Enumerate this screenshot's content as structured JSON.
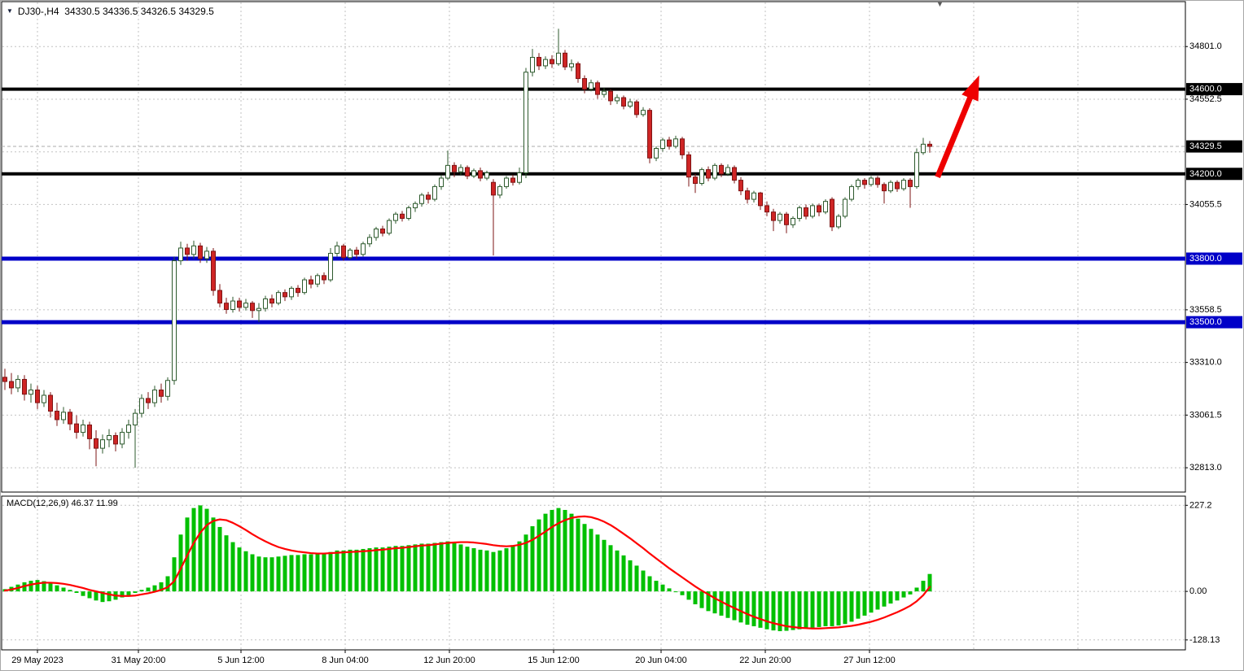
{
  "header": {
    "dropdown_icon": "▼",
    "symbol_line": "DJ30-,H4  34330.5 34336.5 34326.5 34329.5",
    "scroll_icon": "▼"
  },
  "colors": {
    "bg": "#ffffff",
    "frame": "#000000",
    "grid": "#c2c2c2",
    "axis_text": "#000000",
    "up_fill": "#ffffff",
    "up_border": "#2d5a2d",
    "down_fill": "#cf2525",
    "down_border": "#7e1414",
    "price_line": "#ababab",
    "badge_text": "#ffffff",
    "badge_black": "#000000",
    "badge_blue": "#0000c8",
    "macd_bar": "#00c000",
    "macd_signal": "#ff0000"
  },
  "chart_data": {
    "type": "candlestick_with_macd",
    "symbol": "DJ30-",
    "timeframe": "H4",
    "quote": {
      "open": "34330.5",
      "high": "34336.5",
      "low": "34326.5",
      "close": "34329.5"
    },
    "main": {
      "ylim": [
        32702,
        34990
      ],
      "yticks": [
        34801.0,
        34552.5,
        34304.0,
        34055.5,
        33807.0,
        33558.5,
        33310.0,
        33061.5,
        32813.0
      ],
      "ytick_labels": [
        "34801.0",
        "34552.5",
        "",
        "34055.5",
        "",
        "33558.5",
        "33310.0",
        "33061.5",
        "32813.0"
      ],
      "hlines": [
        {
          "price": 34600.0,
          "label": "34600.0",
          "color": "#000000",
          "badge": "#000000",
          "width": 4
        },
        {
          "price": 34200.0,
          "label": "34200.0",
          "color": "#000000",
          "badge": "#000000",
          "width": 4
        },
        {
          "price": 33800.0,
          "label": "33800.0",
          "color": "#0000c8",
          "badge": "#0000c8",
          "width": 5
        },
        {
          "price": 33500.0,
          "label": "33500.0",
          "color": "#0000c8",
          "badge": "#0000c8",
          "width": 5
        }
      ],
      "current_price": {
        "value": 34329.5,
        "label": "34329.5"
      }
    },
    "ohlc": [
      [
        33240,
        33280,
        33180,
        33220
      ],
      [
        33220,
        33260,
        33160,
        33190
      ],
      [
        33190,
        33250,
        33170,
        33230
      ],
      [
        33230,
        33250,
        33130,
        33160
      ],
      [
        33160,
        33210,
        33120,
        33180
      ],
      [
        33180,
        33200,
        33090,
        33120
      ],
      [
        33120,
        33180,
        33100,
        33155
      ],
      [
        33155,
        33170,
        33050,
        33080
      ],
      [
        33080,
        33120,
        33010,
        33040
      ],
      [
        33040,
        33100,
        33020,
        33075
      ],
      [
        33075,
        33090,
        32990,
        33020
      ],
      [
        33020,
        33060,
        32950,
        32980
      ],
      [
        32980,
        33040,
        32960,
        33015
      ],
      [
        33015,
        33030,
        32900,
        32950
      ],
      [
        32950,
        32990,
        32820,
        32905
      ],
      [
        32905,
        32970,
        32880,
        32945
      ],
      [
        32945,
        32995,
        32910,
        32965
      ],
      [
        32965,
        32980,
        32890,
        32925
      ],
      [
        32925,
        33000,
        32905,
        32980
      ],
      [
        32980,
        33040,
        32950,
        33015
      ],
      [
        33015,
        33090,
        32813,
        33070
      ],
      [
        33070,
        33160,
        33050,
        33140
      ],
      [
        33140,
        33170,
        33090,
        33120
      ],
      [
        33120,
        33200,
        33100,
        33180
      ],
      [
        33180,
        33210,
        33120,
        33150
      ],
      [
        33150,
        33240,
        33130,
        33225
      ],
      [
        33225,
        33810,
        33205,
        33790
      ],
      [
        33790,
        33880,
        33770,
        33850
      ],
      [
        33850,
        33870,
        33790,
        33820
      ],
      [
        33820,
        33885,
        33800,
        33860
      ],
      [
        33860,
        33875,
        33780,
        33800
      ],
      [
        33800,
        33855,
        33780,
        33835
      ],
      [
        33835,
        33850,
        33625,
        33650
      ],
      [
        33650,
        33680,
        33570,
        33590
      ],
      [
        33590,
        33615,
        33540,
        33560
      ],
      [
        33560,
        33620,
        33545,
        33600
      ],
      [
        33600,
        33615,
        33550,
        33570
      ],
      [
        33570,
        33610,
        33555,
        33590
      ],
      [
        33590,
        33600,
        33520,
        33555
      ],
      [
        33555,
        33590,
        33500,
        33565
      ],
      [
        33565,
        33625,
        33550,
        33610
      ],
      [
        33610,
        33630,
        33570,
        33590
      ],
      [
        33590,
        33650,
        33580,
        33640
      ],
      [
        33640,
        33655,
        33600,
        33620
      ],
      [
        33620,
        33670,
        33605,
        33660
      ],
      [
        33660,
        33675,
        33620,
        33640
      ],
      [
        33640,
        33710,
        33630,
        33700
      ],
      [
        33700,
        33720,
        33660,
        33680
      ],
      [
        33680,
        33730,
        33665,
        33720
      ],
      [
        33720,
        33735,
        33680,
        33700
      ],
      [
        33700,
        33850,
        33690,
        33825
      ],
      [
        33825,
        33880,
        33810,
        33860
      ],
      [
        33860,
        33870,
        33790,
        33805
      ],
      [
        33805,
        33850,
        33795,
        33840
      ],
      [
        33840,
        33855,
        33800,
        33820
      ],
      [
        33820,
        33880,
        33810,
        33870
      ],
      [
        33870,
        33915,
        33855,
        33900
      ],
      [
        33900,
        33950,
        33885,
        33940
      ],
      [
        33940,
        33955,
        33905,
        33920
      ],
      [
        33920,
        33990,
        33910,
        33980
      ],
      [
        33980,
        34020,
        33965,
        34010
      ],
      [
        34010,
        34025,
        33975,
        33990
      ],
      [
        33990,
        34050,
        33980,
        34040
      ],
      [
        34040,
        34070,
        34020,
        34060
      ],
      [
        34060,
        34110,
        34045,
        34100
      ],
      [
        34100,
        34115,
        34060,
        34080
      ],
      [
        34080,
        34150,
        34070,
        34140
      ],
      [
        34140,
        34195,
        34125,
        34180
      ],
      [
        34180,
        34310,
        34170,
        34240
      ],
      [
        34240,
        34255,
        34185,
        34210
      ],
      [
        34210,
        34245,
        34195,
        34230
      ],
      [
        34230,
        34240,
        34175,
        34190
      ],
      [
        34190,
        34225,
        34180,
        34215
      ],
      [
        34215,
        34230,
        34165,
        34180
      ],
      [
        34180,
        34215,
        34170,
        34205
      ],
      [
        34160,
        34175,
        33815,
        34100
      ],
      [
        34100,
        34150,
        34085,
        34140
      ],
      [
        34140,
        34190,
        34130,
        34180
      ],
      [
        34180,
        34195,
        34145,
        34160
      ],
      [
        34160,
        34230,
        34150,
        34205
      ],
      [
        34205,
        34700,
        34180,
        34680
      ],
      [
        34680,
        34790,
        34660,
        34750
      ],
      [
        34750,
        34770,
        34690,
        34710
      ],
      [
        34710,
        34755,
        34695,
        34740
      ],
      [
        34740,
        34760,
        34700,
        34720
      ],
      [
        34720,
        34885,
        34710,
        34770
      ],
      [
        34770,
        34785,
        34690,
        34705
      ],
      [
        34705,
        34740,
        34685,
        34720
      ],
      [
        34720,
        34730,
        34630,
        34650
      ],
      [
        34650,
        34665,
        34580,
        34600
      ],
      [
        34600,
        34645,
        34590,
        34630
      ],
      [
        34630,
        34640,
        34555,
        34575
      ],
      [
        34575,
        34605,
        34560,
        34590
      ],
      [
        34590,
        34600,
        34525,
        34545
      ],
      [
        34545,
        34575,
        34530,
        34560
      ],
      [
        34560,
        34570,
        34505,
        34520
      ],
      [
        34520,
        34555,
        34510,
        34540
      ],
      [
        34540,
        34550,
        34465,
        34480
      ],
      [
        34480,
        34515,
        34470,
        34500
      ],
      [
        34500,
        34510,
        34250,
        34275
      ],
      [
        34275,
        34330,
        34260,
        34320
      ],
      [
        34320,
        34370,
        34305,
        34360
      ],
      [
        34360,
        34375,
        34315,
        34330
      ],
      [
        34330,
        34380,
        34320,
        34365
      ],
      [
        34365,
        34375,
        34270,
        34290
      ],
      [
        34290,
        34305,
        34140,
        34185
      ],
      [
        34185,
        34200,
        34110,
        34155
      ],
      [
        34155,
        34230,
        34145,
        34220
      ],
      [
        34220,
        34235,
        34165,
        34180
      ],
      [
        34180,
        34250,
        34170,
        34240
      ],
      [
        34240,
        34250,
        34185,
        34200
      ],
      [
        34200,
        34245,
        34190,
        34230
      ],
      [
        34230,
        34240,
        34155,
        34170
      ],
      [
        34170,
        34185,
        34100,
        34120
      ],
      [
        34120,
        34135,
        34060,
        34080
      ],
      [
        34080,
        34120,
        34065,
        34110
      ],
      [
        34110,
        34115,
        34030,
        34050
      ],
      [
        34050,
        34070,
        34000,
        34020
      ],
      [
        34020,
        34035,
        33930,
        33980
      ],
      [
        33980,
        34020,
        33965,
        34010
      ],
      [
        34010,
        34020,
        33920,
        33960
      ],
      [
        33960,
        34000,
        33945,
        33990
      ],
      [
        33990,
        34050,
        33975,
        34040
      ],
      [
        34040,
        34055,
        33985,
        34000
      ],
      [
        34000,
        34060,
        33990,
        34050
      ],
      [
        34050,
        34060,
        34000,
        34020
      ],
      [
        34020,
        34080,
        34010,
        34070
      ],
      [
        34080,
        34090,
        33930,
        33950
      ],
      [
        33950,
        34010,
        33940,
        34000
      ],
      [
        34000,
        34090,
        33990,
        34080
      ],
      [
        34080,
        34150,
        34070,
        34140
      ],
      [
        34140,
        34180,
        34125,
        34170
      ],
      [
        34170,
        34180,
        34130,
        34150
      ],
      [
        34150,
        34190,
        34140,
        34180
      ],
      [
        34180,
        34190,
        34135,
        34150
      ],
      [
        34150,
        34160,
        34060,
        34120
      ],
      [
        34120,
        34170,
        34110,
        34160
      ],
      [
        34160,
        34170,
        34115,
        34130
      ],
      [
        34130,
        34180,
        34120,
        34170
      ],
      [
        34170,
        34180,
        34040,
        34140
      ],
      [
        34140,
        34320,
        34130,
        34300
      ],
      [
        34300,
        34370,
        34290,
        34340
      ],
      [
        34340,
        34355,
        34300,
        34330
      ]
    ],
    "macd": {
      "label": "MACD(12,26,9) 46.37 11.99",
      "ylim": [
        -150,
        245
      ],
      "yticks": [
        {
          "v": 227.2,
          "label": "227.2"
        },
        {
          "v": 0.0,
          "label": "0.00"
        },
        {
          "v": -128.13,
          "label": "-128.13"
        }
      ],
      "histogram": [
        6,
        12,
        18,
        24,
        28,
        30,
        27,
        22,
        16,
        10,
        4,
        -4,
        -12,
        -18,
        -24,
        -28,
        -26,
        -22,
        -16,
        -10,
        -4,
        4,
        10,
        16,
        24,
        40,
        90,
        150,
        195,
        220,
        227,
        218,
        195,
        170,
        148,
        130,
        116,
        106,
        98,
        92,
        90,
        90,
        92,
        94,
        96,
        96,
        98,
        98,
        100,
        100,
        104,
        108,
        108,
        110,
        110,
        112,
        114,
        116,
        116,
        118,
        120,
        120,
        122,
        124,
        126,
        126,
        128,
        130,
        132,
        128,
        124,
        118,
        114,
        110,
        108,
        104,
        108,
        114,
        122,
        132,
        150,
        172,
        190,
        205,
        215,
        220,
        215,
        205,
        192,
        178,
        165,
        150,
        136,
        122,
        108,
        95,
        82,
        68,
        55,
        40,
        28,
        18,
        8,
        0,
        -10,
        -22,
        -34,
        -44,
        -52,
        -58,
        -64,
        -70,
        -76,
        -82,
        -88,
        -92,
        -96,
        -100,
        -103,
        -105,
        -104,
        -102,
        -100,
        -98,
        -96,
        -94,
        -92,
        -92,
        -90,
        -86,
        -80,
        -72,
        -64,
        -56,
        -48,
        -40,
        -32,
        -24,
        -16,
        -8,
        10,
        28,
        46
      ],
      "signal": [
        2,
        5,
        9,
        14,
        18,
        21,
        23,
        23,
        22,
        20,
        17,
        13,
        9,
        4,
        0,
        -4,
        -8,
        -11,
        -12,
        -12,
        -11,
        -8,
        -5,
        -1,
        4,
        11,
        27,
        60,
        95,
        128,
        155,
        175,
        186,
        190,
        188,
        181,
        172,
        162,
        151,
        141,
        132,
        124,
        117,
        112,
        108,
        105,
        103,
        101,
        100,
        100,
        101,
        102,
        103,
        104,
        105,
        106,
        107,
        109,
        110,
        112,
        114,
        115,
        117,
        119,
        121,
        122,
        124,
        126,
        128,
        129,
        130,
        130,
        129,
        127,
        125,
        122,
        120,
        119,
        120,
        123,
        128,
        136,
        147,
        158,
        170,
        180,
        188,
        194,
        197,
        198,
        196,
        191,
        184,
        175,
        164,
        152,
        140,
        127,
        114,
        100,
        87,
        74,
        61,
        49,
        37,
        25,
        13,
        2,
        -8,
        -18,
        -27,
        -36,
        -44,
        -52,
        -60,
        -67,
        -73,
        -79,
        -84,
        -88,
        -92,
        -94,
        -96,
        -97,
        -98,
        -98,
        -97,
        -96,
        -95,
        -93,
        -91,
        -88,
        -84,
        -80,
        -75,
        -69,
        -62,
        -55,
        -47,
        -38,
        -26,
        -10,
        12
      ]
    },
    "x_axis": {
      "ticks": [
        {
          "i": 5,
          "label": "29 May 2023"
        },
        {
          "i": 20.5,
          "label": "31 May 20:00"
        },
        {
          "i": 36.25,
          "label": "5 Jun 12:00"
        },
        {
          "i": 52.25,
          "label": "8 Jun 04:00"
        },
        {
          "i": 68.25,
          "label": "12 Jun 20:00"
        },
        {
          "i": 84.25,
          "label": "15 Jun 12:00"
        },
        {
          "i": 100.75,
          "label": "20 Jun 04:00"
        },
        {
          "i": 116.75,
          "label": "22 Jun 20:00"
        },
        {
          "i": 132.75,
          "label": "27 Jun 12:00"
        },
        {
          "i": 148.75,
          "label": ""
        },
        {
          "i": 164.75,
          "label": ""
        }
      ]
    },
    "annotations": [
      {
        "type": "arrow",
        "from_i": 143.2,
        "from_price": 34185,
        "to_i": 149.6,
        "to_price": 34665,
        "color": "#ee0000"
      }
    ]
  }
}
